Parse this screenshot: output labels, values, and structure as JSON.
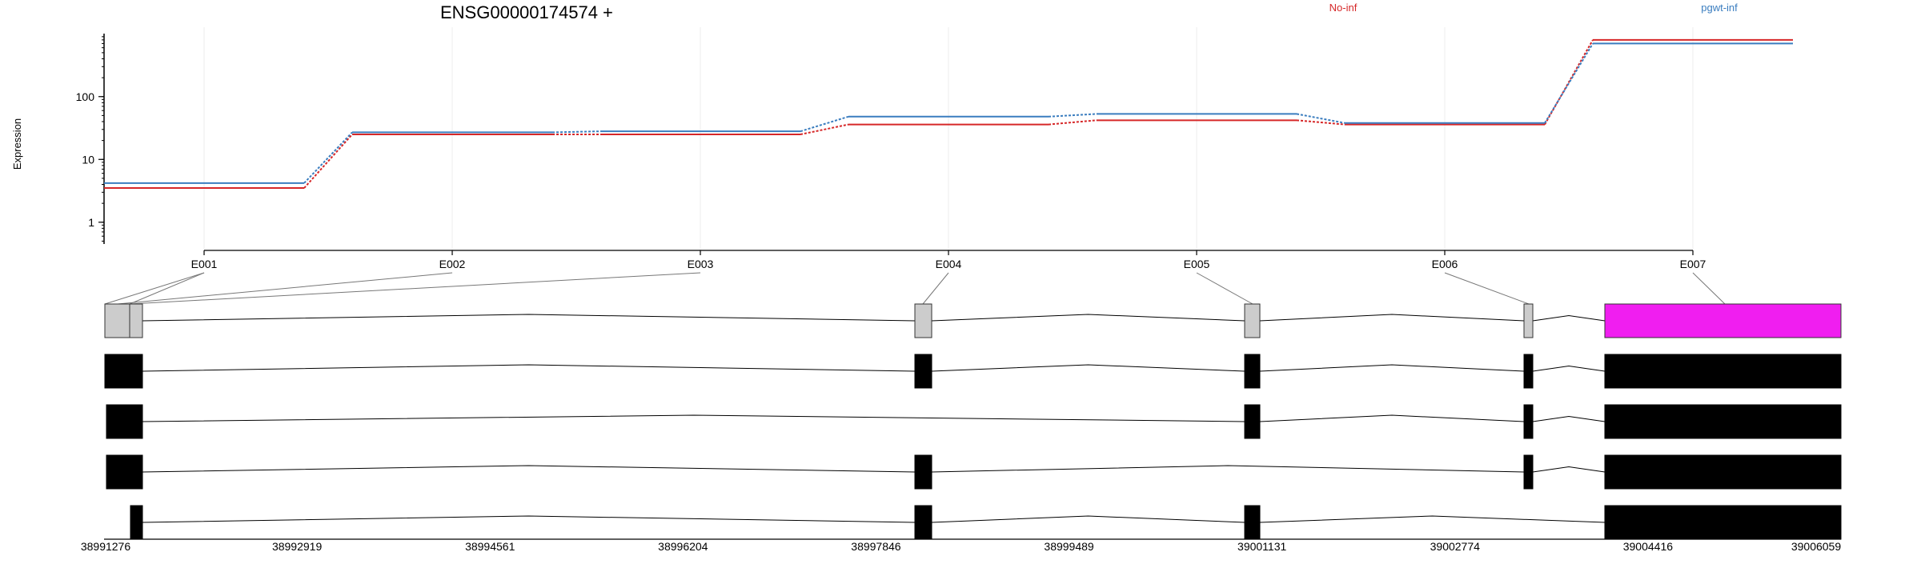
{
  "chart_data": {
    "type": "line",
    "title": "ENSG00000174574 +",
    "ylabel": "Expression",
    "yscale": "log",
    "ylim": [
      0.45,
      950
    ],
    "yticks": [
      1,
      10,
      100
    ],
    "categories": [
      "E001",
      "E002",
      "E003",
      "E004",
      "E005",
      "E006",
      "E007"
    ],
    "series": [
      {
        "name": "No-inf",
        "color": "#d62728",
        "values": [
          3.5,
          25,
          25,
          36,
          42,
          36,
          800
        ]
      },
      {
        "name": "pgwt-inf",
        "color": "#3a7dbf",
        "values": [
          4.2,
          27,
          28,
          48,
          53,
          38,
          700
        ]
      }
    ],
    "genomic_axis": {
      "ticks": [
        "38991276",
        "38992919",
        "38994561",
        "38996204",
        "38997846",
        "38999489",
        "39001131",
        "39002774",
        "39004416",
        "39006059"
      ]
    },
    "gene_model": {
      "highlight_color": "#f01ef0",
      "exon_color": "#cccccc",
      "transcript_color": "#000000"
    }
  }
}
